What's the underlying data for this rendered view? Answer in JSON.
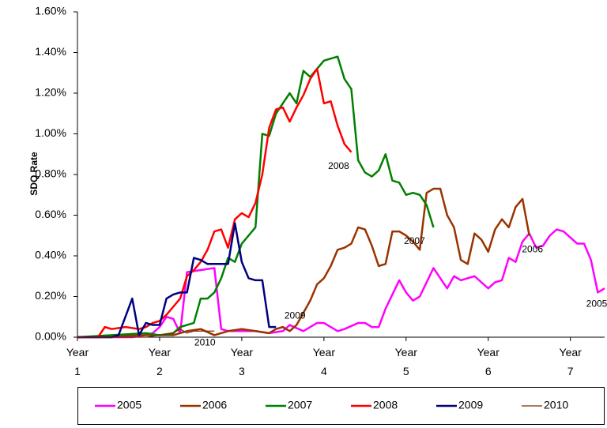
{
  "chart_data": {
    "type": "line",
    "y_label": "SDQ Rate",
    "xlim": [
      0,
      77
    ],
    "ylim": [
      0,
      1.6
    ],
    "xticks": [
      {
        "value": 0,
        "label": "Year 1"
      },
      {
        "value": 12,
        "label": "Year 2"
      },
      {
        "value": 24,
        "label": "Year 3"
      },
      {
        "value": 36,
        "label": "Year 4"
      },
      {
        "value": 48,
        "label": "Year 5"
      },
      {
        "value": 60,
        "label": "Year 6"
      },
      {
        "value": 72,
        "label": "Year 7"
      }
    ],
    "yticks": [
      {
        "value": 0,
        "label": "0.00%"
      },
      {
        "value": 0.2,
        "label": "0.20%"
      },
      {
        "value": 0.4,
        "label": "0.40%"
      },
      {
        "value": 0.6,
        "label": "0.60%"
      },
      {
        "value": 0.8,
        "label": "0.80%"
      },
      {
        "value": 1.0,
        "label": "1.00%"
      },
      {
        "value": 1.2,
        "label": "1.20%"
      },
      {
        "value": 1.4,
        "label": "1.40%"
      },
      {
        "value": 1.6,
        "label": "1.60%"
      }
    ],
    "grid": false,
    "legend": "bottom",
    "series": [
      {
        "name": "2005",
        "color": "#ff00ff",
        "line_width": 2.5,
        "x": [
          0,
          8,
          10,
          11,
          12,
          13,
          14,
          15,
          16,
          18,
          20,
          21,
          22,
          24,
          26,
          28,
          30,
          31,
          33,
          35,
          36,
          38,
          39,
          41,
          42,
          43,
          44,
          45,
          47,
          48,
          49,
          50,
          52,
          54,
          55,
          56,
          58,
          60,
          61,
          62,
          63,
          64,
          65,
          66,
          67,
          68,
          69,
          70,
          71,
          72,
          73,
          74,
          75,
          76,
          77
        ],
        "values": [
          0,
          0,
          0.01,
          0.02,
          0.05,
          0.1,
          0.09,
          0.02,
          0.32,
          0.33,
          0.34,
          0.04,
          0.03,
          0.03,
          0.03,
          0.02,
          0.03,
          0.06,
          0.03,
          0.07,
          0.07,
          0.03,
          0.04,
          0.07,
          0.07,
          0.05,
          0.05,
          0.14,
          0.28,
          0.22,
          0.18,
          0.2,
          0.34,
          0.24,
          0.3,
          0.28,
          0.3,
          0.24,
          0.27,
          0.28,
          0.39,
          0.37,
          0.47,
          0.51,
          0.44,
          0.45,
          0.5,
          0.53,
          0.52,
          0.49,
          0.46,
          0.46,
          0.38,
          0.22,
          0.24
        ]
      },
      {
        "name": "2006",
        "color": "#993300",
        "line_width": 2.5,
        "x": [
          0,
          10,
          14,
          16,
          18,
          20,
          22,
          24,
          26,
          28,
          29,
          30,
          31,
          32,
          33,
          34,
          35,
          36,
          37,
          38,
          39,
          40,
          41,
          42,
          43,
          44,
          45,
          46,
          47,
          48,
          49,
          50,
          51,
          52,
          53,
          54,
          55,
          56,
          57,
          58,
          59,
          60,
          61,
          62,
          63,
          64,
          65,
          66
        ],
        "values": [
          0,
          0.01,
          0.01,
          0.03,
          0.04,
          0.01,
          0.03,
          0.04,
          0.03,
          0.02,
          0.04,
          0.05,
          0.03,
          0.06,
          0.12,
          0.18,
          0.26,
          0.29,
          0.35,
          0.43,
          0.44,
          0.46,
          0.54,
          0.53,
          0.45,
          0.35,
          0.36,
          0.52,
          0.52,
          0.5,
          0.47,
          0.43,
          0.71,
          0.73,
          0.73,
          0.6,
          0.54,
          0.38,
          0.36,
          0.51,
          0.48,
          0.42,
          0.53,
          0.58,
          0.54,
          0.64,
          0.68,
          0.5
        ]
      },
      {
        "name": "2007",
        "color": "#008000",
        "line_width": 2.5,
        "x": [
          0,
          10,
          12,
          14,
          15,
          16,
          17,
          18,
          19,
          20,
          21,
          22,
          23,
          24,
          25,
          26,
          27,
          28,
          29,
          30,
          31,
          32,
          33,
          34,
          35,
          36,
          37,
          38,
          39,
          40,
          41,
          42,
          43,
          44,
          45,
          46,
          47,
          48,
          49,
          50,
          51,
          52
        ],
        "values": [
          0,
          0.02,
          0.01,
          0.02,
          0.05,
          0.06,
          0.07,
          0.19,
          0.19,
          0.22,
          0.29,
          0.39,
          0.37,
          0.46,
          0.5,
          0.54,
          1.0,
          0.99,
          1.1,
          1.15,
          1.2,
          1.15,
          1.31,
          1.28,
          1.32,
          1.36,
          1.37,
          1.38,
          1.27,
          1.22,
          0.87,
          0.81,
          0.79,
          0.82,
          0.9,
          0.77,
          0.76,
          0.7,
          0.71,
          0.7,
          0.65,
          0.54
        ]
      },
      {
        "name": "2008",
        "color": "#ff0000",
        "line_width": 2.5,
        "x": [
          0,
          3,
          4,
          5,
          7,
          9,
          10,
          11,
          12,
          13,
          14,
          15,
          16,
          17,
          18,
          19,
          20,
          21,
          22,
          23,
          24,
          25,
          26,
          27,
          28,
          29,
          30,
          31,
          32,
          33,
          34,
          35,
          36,
          37,
          38,
          39,
          40
        ],
        "values": [
          0,
          0,
          0.05,
          0.04,
          0.05,
          0.04,
          0.05,
          0.07,
          0.08,
          0.11,
          0.15,
          0.19,
          0.3,
          0.33,
          0.37,
          0.43,
          0.52,
          0.53,
          0.44,
          0.58,
          0.61,
          0.59,
          0.66,
          0.8,
          1.03,
          1.12,
          1.13,
          1.06,
          1.13,
          1.19,
          1.27,
          1.32,
          1.15,
          1.16,
          1.04,
          0.95,
          0.91
        ]
      },
      {
        "name": "2009",
        "color": "#000080",
        "line_width": 2.5,
        "x": [
          0,
          5,
          6,
          8,
          9,
          10,
          11,
          12,
          13,
          14,
          15,
          16,
          17,
          18,
          19,
          20,
          21,
          22,
          23,
          24,
          25,
          26,
          27,
          28,
          29
        ],
        "values": [
          0,
          0,
          0.01,
          0.19,
          0.01,
          0.07,
          0.06,
          0.06,
          0.19,
          0.21,
          0.22,
          0.22,
          0.39,
          0.38,
          0.36,
          0.36,
          0.36,
          0.36,
          0.56,
          0.37,
          0.29,
          0.28,
          0.28,
          0.05,
          0.05
        ]
      },
      {
        "name": "2010",
        "color": "#7a2a00",
        "line_width": 1.2,
        "x": [
          0,
          5,
          10,
          12,
          14,
          15,
          16,
          17,
          18,
          20
        ],
        "values": [
          0,
          0,
          0,
          0.01,
          0.02,
          0.04,
          0.02,
          0.03,
          0.03,
          0.03
        ]
      }
    ],
    "annotations": [
      "2005",
      "2006",
      "2007",
      "2008",
      "2009",
      "2010"
    ]
  }
}
